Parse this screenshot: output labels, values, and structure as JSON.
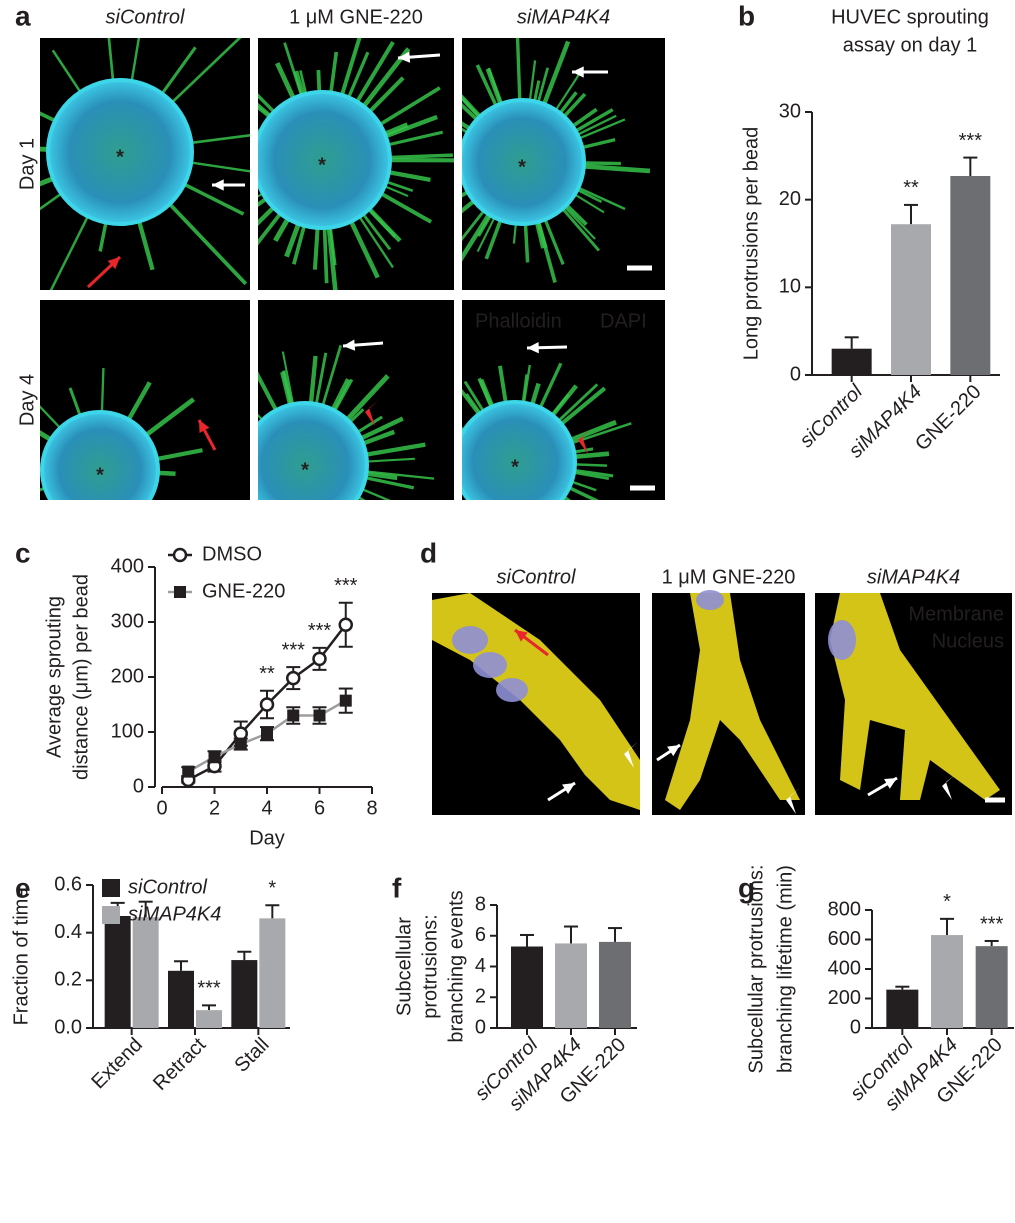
{
  "panel_a": {
    "label": "a",
    "columns": [
      "siControl",
      "1 μM GNE-220",
      "siMAP4K4"
    ],
    "rows": [
      "Day 1",
      "Day 4"
    ],
    "stain_labels": [
      "Phalloidin",
      "DAPI"
    ],
    "bead_marker": "*"
  },
  "panel_d": {
    "label": "d",
    "columns": [
      "siControl",
      "1 μM GNE-220",
      "siMAP4K4"
    ],
    "stain_labels": [
      "Membrane",
      "Nucleus"
    ]
  },
  "chart_data": [
    {
      "type": "bar",
      "panel": "b",
      "title": [
        "HUVEC sprouting",
        "assay on day 1"
      ],
      "ylabel": [
        "Long protrusions per bead"
      ],
      "categories": [
        "siControl",
        "siMAP4K4",
        "GNE-220"
      ],
      "values": [
        3,
        17.2,
        22.7
      ],
      "errors": [
        1.3,
        2.2,
        2.1
      ],
      "colors": [
        "#231f20",
        "#a7a9ac",
        "#6d6e71"
      ],
      "annotations": [
        null,
        "**",
        "***"
      ],
      "ylim": [
        0,
        30
      ],
      "yticks": [
        0,
        10,
        20,
        30
      ]
    },
    {
      "type": "line",
      "panel": "c",
      "xlabel": "Day",
      "ylabel": [
        "Average sprouting",
        "distance (μm) per bead"
      ],
      "x": [
        1,
        2,
        3,
        4,
        5,
        6,
        7
      ],
      "series": [
        {
          "name": "DMSO",
          "marker": "circle",
          "color": "#231f20",
          "line_color": "#231f20",
          "values": [
            13,
            38,
            97,
            150,
            198,
            233,
            295
          ],
          "errors": [
            5,
            10,
            22,
            25,
            20,
            20,
            40
          ],
          "annotations": [
            null,
            null,
            null,
            "**",
            "***",
            "***",
            "***"
          ]
        },
        {
          "name": "GNE-220",
          "marker": "square",
          "color": "#231f20",
          "line_color": "#9d9d9d",
          "values": [
            28,
            55,
            78,
            97,
            130,
            130,
            157
          ],
          "errors": [
            8,
            10,
            10,
            12,
            15,
            15,
            22
          ]
        }
      ],
      "xlim": [
        0,
        8
      ],
      "xticks": [
        0,
        2,
        4,
        6,
        8
      ],
      "ylim": [
        0,
        400
      ],
      "yticks": [
        0,
        100,
        200,
        300,
        400
      ]
    },
    {
      "type": "grouped_bar",
      "panel": "e",
      "ylabel": [
        "Fraction of time"
      ],
      "categories": [
        "Extend",
        "Retract",
        "Stall"
      ],
      "series": [
        {
          "name": "siControl",
          "color": "#231f20",
          "values": [
            0.47,
            0.24,
            0.285
          ],
          "errors": [
            0.055,
            0.04,
            0.035
          ]
        },
        {
          "name": "siMAP4K4",
          "color": "#a7a9ac",
          "values": [
            0.465,
            0.075,
            0.46
          ],
          "errors": [
            0.065,
            0.02,
            0.055
          ],
          "annotations": [
            null,
            "***",
            "*"
          ]
        }
      ],
      "ylim": [
        0,
        0.6
      ],
      "yticks": [
        {
          "value": 0,
          "label": "0.0"
        },
        0.2,
        0.4,
        0.6
      ]
    },
    {
      "type": "bar",
      "panel": "f",
      "ylabel": [
        "Subcellular",
        "protrusions:",
        "branching events"
      ],
      "categories": [
        "siControl",
        "siMAP4K4",
        "GNE-220"
      ],
      "values": [
        5.3,
        5.5,
        5.6
      ],
      "errors": [
        0.75,
        1.1,
        0.9
      ],
      "colors": [
        "#231f20",
        "#a7a9ac",
        "#6d6e71"
      ],
      "ylim": [
        0,
        8
      ],
      "yticks": [
        0,
        2,
        4,
        6,
        8
      ]
    },
    {
      "type": "bar",
      "panel": "g",
      "ylabel": [
        "Subcellular protrusions:",
        "branching lifetime (min)"
      ],
      "categories": [
        "siControl",
        "siMAP4K4",
        "GNE-220"
      ],
      "values": [
        260,
        630,
        555
      ],
      "errors": [
        20,
        110,
        35
      ],
      "colors": [
        "#231f20",
        "#a7a9ac",
        "#6d6e71"
      ],
      "annotations": [
        null,
        "*",
        "***"
      ],
      "ylim": [
        0,
        800
      ],
      "yticks": [
        0,
        200,
        400,
        600,
        800
      ]
    }
  ]
}
